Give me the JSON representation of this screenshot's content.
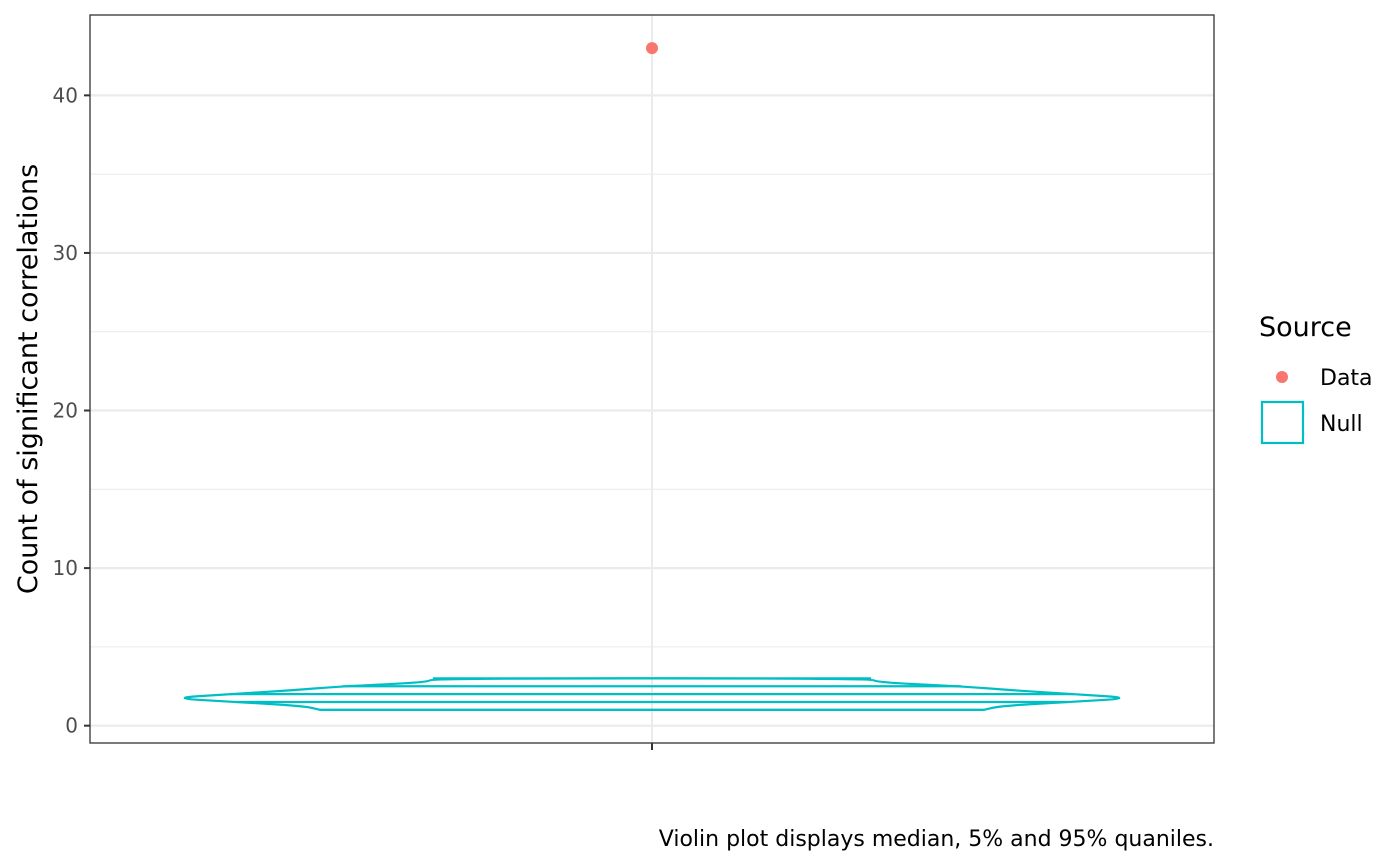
{
  "chart_data": {
    "type": "violin",
    "ylabel": "Count of significant correlations",
    "xlabel": "",
    "ylim": [
      -1.1,
      45.1
    ],
    "yticks": [
      0,
      10,
      20,
      30,
      40
    ],
    "grid": true,
    "legend": {
      "title": "Source",
      "placement": "right",
      "entries": [
        {
          "label": "Data",
          "color": "#F8766D",
          "shape": "point"
        },
        {
          "label": "Null",
          "color": "#00BFC4",
          "shape": "box"
        }
      ]
    },
    "series": [
      {
        "name": "Data",
        "type": "point",
        "values": [
          43
        ]
      },
      {
        "name": "Null",
        "type": "violin",
        "range": [
          1,
          3
        ],
        "quantile_lines": [
          1,
          1.5,
          2,
          2.5,
          3
        ],
        "density_profile": [
          {
            "y": 1.0,
            "w": 0.59
          },
          {
            "y": 1.25,
            "w": 0.62
          },
          {
            "y": 1.5,
            "w": 0.74
          },
          {
            "y": 1.75,
            "w": 0.86
          },
          {
            "y": 2.0,
            "w": 0.75
          },
          {
            "y": 2.25,
            "w": 0.64
          },
          {
            "y": 2.5,
            "w": 0.55
          },
          {
            "y": 2.75,
            "w": 0.4
          },
          {
            "y": 3.0,
            "w": 0.39
          }
        ]
      }
    ],
    "caption": "Violin plot displays median, 5% and 95% quaniles."
  },
  "colors": {
    "data": "#F8766D",
    "null": "#00BFC4",
    "grid": "#ebebeb",
    "panel_border": "#333333"
  }
}
